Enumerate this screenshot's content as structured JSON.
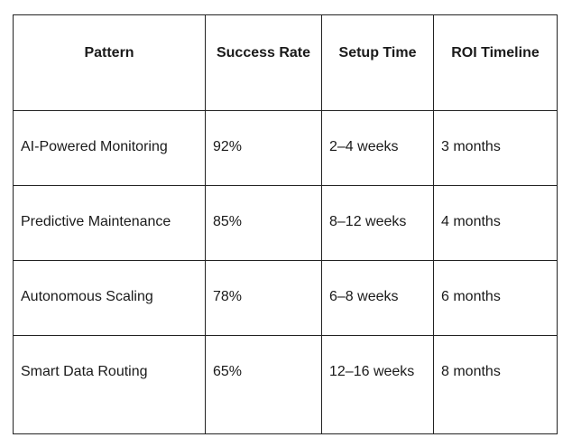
{
  "table": {
    "headers": [
      "Pattern",
      "Success Rate",
      "Setup Time",
      "ROI Timeline"
    ],
    "rows": [
      [
        "AI-Powered Monitoring",
        "92%",
        "2–4 weeks",
        "3 months"
      ],
      [
        "Predictive Maintenance",
        "85%",
        "8–12 weeks",
        "4 months"
      ],
      [
        "Autonomous Scaling",
        "78%",
        "6–8 weeks",
        "6 months"
      ],
      [
        "Smart Data Routing",
        "65%",
        "12–16 weeks",
        "8 months"
      ]
    ]
  }
}
